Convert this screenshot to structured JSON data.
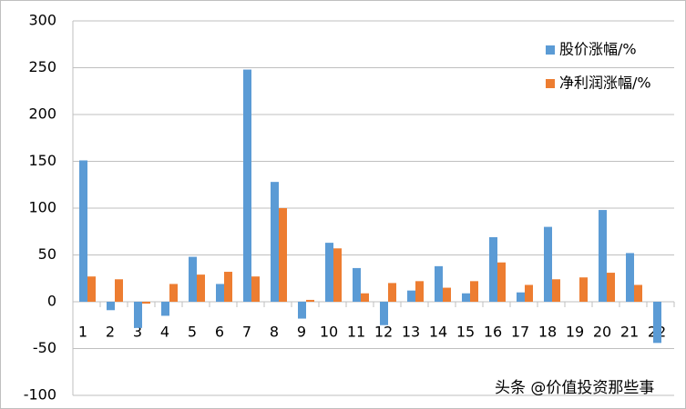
{
  "chart_data": {
    "type": "bar",
    "categories": [
      "1",
      "2",
      "3",
      "4",
      "5",
      "6",
      "7",
      "8",
      "9",
      "10",
      "11",
      "12",
      "13",
      "14",
      "15",
      "16",
      "17",
      "18",
      "19",
      "20",
      "21",
      "22"
    ],
    "series": [
      {
        "name": "股价涨幅/%",
        "color": "#5b9bd5",
        "values": [
          151,
          -9,
          -28,
          -15,
          48,
          19,
          248,
          128,
          -18,
          63,
          36,
          -25,
          12,
          38,
          9,
          69,
          10,
          80,
          0,
          98,
          52,
          -44
        ]
      },
      {
        "name": "净利润涨幅/%",
        "color": "#ed7d31",
        "values": [
          27,
          24,
          -2,
          19,
          29,
          32,
          27,
          100,
          2,
          57,
          9,
          20,
          22,
          15,
          22,
          42,
          18,
          24,
          26,
          31,
          18,
          0
        ]
      }
    ],
    "ylim": [
      -100,
      300
    ],
    "yticks": [
      -100,
      -50,
      0,
      50,
      100,
      150,
      200,
      250,
      300
    ],
    "grid": true,
    "legend": "top-right",
    "annotations": [
      "头条 @价值投资那些事"
    ]
  }
}
